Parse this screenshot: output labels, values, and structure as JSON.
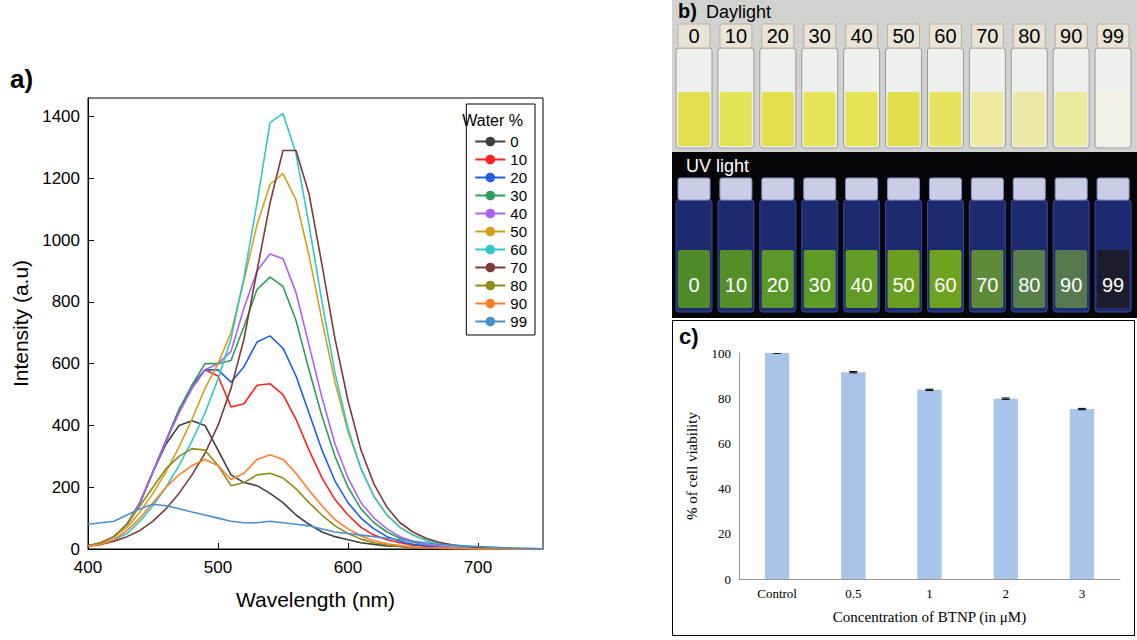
{
  "chart_data": [
    {
      "panel_label": "a)",
      "type": "line",
      "x_label": "Wavelength (nm)",
      "y_label": "Intensity (a.u)",
      "x": [
        400,
        410,
        420,
        430,
        440,
        450,
        460,
        470,
        480,
        490,
        500,
        510,
        520,
        530,
        540,
        550,
        560,
        570,
        580,
        590,
        600,
        610,
        620,
        630,
        640,
        650,
        660,
        670,
        680,
        690,
        700,
        710,
        720,
        730,
        740,
        750
      ],
      "series": [
        {
          "name": "0",
          "color": "#404040",
          "values": [
            10,
            20,
            40,
            80,
            150,
            250,
            340,
            400,
            415,
            400,
            320,
            240,
            215,
            205,
            180,
            150,
            110,
            80,
            55,
            40,
            30,
            20,
            15,
            10,
            8,
            5,
            4,
            3,
            2,
            2,
            1,
            1,
            1,
            1,
            0,
            0
          ]
        },
        {
          "name": "10",
          "color": "#ff2020",
          "values": [
            10,
            20,
            40,
            80,
            150,
            250,
            350,
            450,
            520,
            580,
            560,
            460,
            470,
            530,
            535,
            500,
            420,
            320,
            230,
            160,
            110,
            70,
            45,
            30,
            20,
            12,
            8,
            5,
            3,
            2,
            1,
            1,
            0,
            0,
            0,
            0
          ]
        },
        {
          "name": "20",
          "color": "#1f5fe0",
          "values": [
            10,
            20,
            40,
            80,
            150,
            250,
            350,
            450,
            530,
            580,
            580,
            540,
            590,
            670,
            690,
            650,
            560,
            440,
            320,
            220,
            150,
            100,
            65,
            40,
            25,
            15,
            10,
            6,
            4,
            2,
            1,
            1,
            0,
            0,
            0,
            0
          ]
        },
        {
          "name": "30",
          "color": "#2ca05a",
          "values": [
            10,
            20,
            40,
            80,
            150,
            250,
            350,
            450,
            530,
            600,
            600,
            610,
            720,
            840,
            880,
            850,
            740,
            580,
            430,
            300,
            200,
            130,
            85,
            55,
            35,
            22,
            14,
            9,
            5,
            3,
            2,
            1,
            0,
            0,
            0,
            0
          ]
        },
        {
          "name": "40",
          "color": "#b060f0",
          "values": [
            10,
            20,
            40,
            80,
            150,
            250,
            350,
            440,
            520,
            580,
            600,
            640,
            780,
            900,
            955,
            940,
            830,
            660,
            490,
            340,
            230,
            150,
            100,
            65,
            40,
            25,
            15,
            10,
            6,
            4,
            2,
            1,
            1,
            0,
            0,
            0
          ]
        },
        {
          "name": "50",
          "color": "#d4a017",
          "values": [
            10,
            20,
            40,
            70,
            120,
            180,
            250,
            330,
            420,
            520,
            600,
            700,
            870,
            1050,
            1180,
            1215,
            1130,
            950,
            740,
            540,
            380,
            260,
            170,
            110,
            70,
            45,
            28,
            18,
            11,
            7,
            4,
            3,
            2,
            1,
            1,
            0
          ]
        },
        {
          "name": "60",
          "color": "#30c8c8",
          "values": [
            10,
            15,
            30,
            50,
            90,
            140,
            200,
            270,
            350,
            440,
            550,
            680,
            880,
            1120,
            1380,
            1410,
            1280,
            1050,
            800,
            570,
            390,
            260,
            170,
            110,
            70,
            45,
            28,
            18,
            11,
            7,
            4,
            3,
            2,
            1,
            1,
            0
          ]
        },
        {
          "name": "70",
          "color": "#7a3b3b",
          "values": [
            10,
            15,
            25,
            40,
            60,
            90,
            130,
            180,
            240,
            310,
            400,
            520,
            680,
            900,
            1120,
            1290,
            1290,
            1150,
            920,
            680,
            480,
            320,
            210,
            135,
            85,
            55,
            35,
            22,
            14,
            9,
            5,
            3,
            2,
            1,
            1,
            0
          ]
        },
        {
          "name": "80",
          "color": "#8c8c1a",
          "values": [
            10,
            20,
            40,
            80,
            140,
            200,
            260,
            300,
            325,
            320,
            270,
            205,
            215,
            240,
            245,
            230,
            195,
            150,
            110,
            75,
            50,
            32,
            20,
            13,
            8,
            5,
            3,
            2,
            1,
            1,
            0,
            0,
            0,
            0,
            0,
            0
          ]
        },
        {
          "name": "90",
          "color": "#ff7f27",
          "values": [
            10,
            15,
            30,
            60,
            100,
            150,
            200,
            240,
            270,
            290,
            270,
            225,
            245,
            290,
            305,
            290,
            245,
            190,
            140,
            95,
            65,
            42,
            27,
            17,
            11,
            7,
            4,
            3,
            2,
            1,
            0,
            0,
            0,
            0,
            0,
            0
          ]
        },
        {
          "name": "99",
          "color": "#4a90d0",
          "values": [
            80,
            85,
            90,
            110,
            130,
            145,
            140,
            130,
            120,
            110,
            100,
            90,
            85,
            85,
            90,
            85,
            80,
            75,
            65,
            55,
            50,
            45,
            40,
            35,
            30,
            25,
            20,
            15,
            12,
            10,
            8,
            6,
            4,
            3,
            2,
            1
          ]
        }
      ],
      "xlim": [
        400,
        750
      ],
      "xticks": [
        400,
        500,
        600,
        700
      ],
      "ylim": [
        0,
        1460
      ],
      "yticks": [
        0,
        200,
        400,
        600,
        800,
        1000,
        1200,
        1400
      ],
      "grid": false,
      "legend": "upper right",
      "legend_title": "Water %"
    },
    {
      "panel_label": "c)",
      "type": "bar",
      "x_label": "Concentration of BTNP (in μM)",
      "y_label": "% of cell viability",
      "categories": [
        "Control",
        "0.5",
        "1",
        "2",
        "3"
      ],
      "values": [
        100,
        91.5,
        83.7,
        79.8,
        75.2
      ],
      "errors": [
        0.1,
        0.3,
        0.3,
        0.3,
        0.3
      ],
      "color": "#a9c4eb",
      "ylim": [
        0,
        100
      ],
      "yticks": [
        0,
        20,
        40,
        60,
        80,
        100
      ],
      "grid": false
    }
  ],
  "photos": {
    "panel_label": "b)",
    "panels": [
      {
        "title": "Daylight",
        "vials": [
          0,
          10,
          20,
          30,
          40,
          50,
          60,
          70,
          80,
          90,
          99
        ]
      },
      {
        "title": "UV light",
        "vials": [
          0,
          10,
          20,
          30,
          40,
          50,
          60,
          70,
          80,
          90,
          99
        ]
      }
    ]
  }
}
